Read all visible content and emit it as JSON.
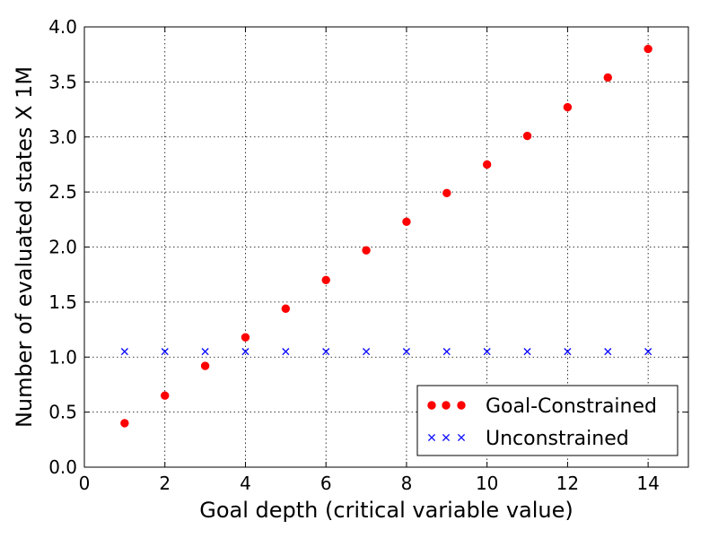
{
  "chart_data": {
    "type": "scatter",
    "title": "",
    "xlabel": "Goal depth (critical variable value)",
    "ylabel": "Number of evaluated states X 1M",
    "xlim": [
      0,
      15
    ],
    "ylim": [
      0,
      4.0
    ],
    "xticks": [
      "0",
      "2",
      "4",
      "6",
      "8",
      "10",
      "12",
      "14"
    ],
    "yticks": [
      "0.0",
      "0.5",
      "1.0",
      "1.5",
      "2.0",
      "2.5",
      "3.0",
      "3.5",
      "4.0"
    ],
    "grid": true,
    "legend_position": "lower-right",
    "series": [
      {
        "name": "Goal-Constrained",
        "marker": "circle",
        "color": "#ff0000",
        "x": [
          1,
          2,
          3,
          4,
          5,
          6,
          7,
          8,
          9,
          10,
          11,
          12,
          13,
          14
        ],
        "y": [
          0.4,
          0.65,
          0.92,
          1.18,
          1.44,
          1.7,
          1.97,
          2.23,
          2.49,
          2.75,
          3.01,
          3.27,
          3.54,
          3.8
        ]
      },
      {
        "name": "Unconstrained",
        "marker": "x",
        "color": "#0000ff",
        "x": [
          1,
          2,
          3,
          4,
          5,
          6,
          7,
          8,
          9,
          10,
          11,
          12,
          13,
          14
        ],
        "y": [
          1.05,
          1.05,
          1.05,
          1.05,
          1.05,
          1.05,
          1.05,
          1.05,
          1.05,
          1.05,
          1.05,
          1.05,
          1.05,
          1.05
        ]
      }
    ]
  }
}
